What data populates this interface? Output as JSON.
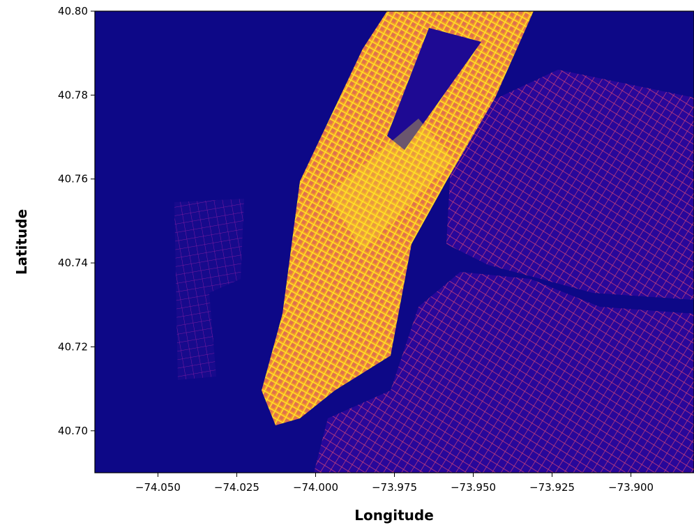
{
  "chart_data": {
    "type": "heatmap",
    "xlabel": "Longitude",
    "ylabel": "Latitude",
    "xlim": [
      -74.07,
      -73.88
    ],
    "ylim": [
      40.69,
      40.8
    ],
    "xticks": [
      {
        "value": -74.05,
        "label": "−74.050"
      },
      {
        "value": -74.025,
        "label": "−74.025"
      },
      {
        "value": -74.0,
        "label": "−74.000"
      },
      {
        "value": -73.975,
        "label": "−73.975"
      },
      {
        "value": -73.95,
        "label": "−73.950"
      },
      {
        "value": -73.925,
        "label": "−73.925"
      },
      {
        "value": -73.9,
        "label": "−73.900"
      }
    ],
    "yticks": [
      {
        "value": 40.7,
        "label": "40.70"
      },
      40.72,
      40.74,
      40.76,
      40.78,
      {
        "value": 40.8,
        "label": "40.80"
      }
    ]
  }
}
